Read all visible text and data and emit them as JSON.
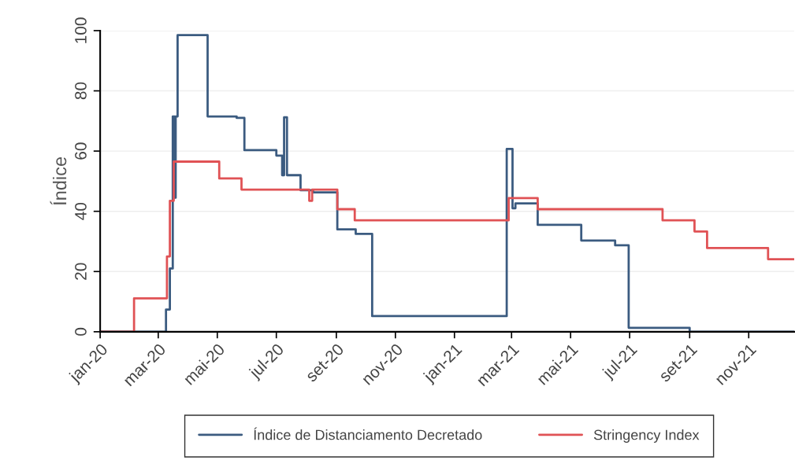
{
  "chart_data": {
    "type": "step",
    "ylabel": "Índice",
    "xlim": [
      "2020-01-01",
      "2021-12-18"
    ],
    "ylim": [
      0,
      100
    ],
    "yticks": [
      0,
      20,
      40,
      60,
      80,
      100
    ],
    "xticks": [
      {
        "value": "2020-01-01",
        "label": "jan-20"
      },
      {
        "value": "2020-03-01",
        "label": "mar-20"
      },
      {
        "value": "2020-05-01",
        "label": "mai-20"
      },
      {
        "value": "2020-07-01",
        "label": "jul-20"
      },
      {
        "value": "2020-09-01",
        "label": "set-20"
      },
      {
        "value": "2020-11-01",
        "label": "nov-20"
      },
      {
        "value": "2021-01-01",
        "label": "jan-21"
      },
      {
        "value": "2021-03-01",
        "label": "mar-21"
      },
      {
        "value": "2021-05-01",
        "label": "mai-21"
      },
      {
        "value": "2021-07-01",
        "label": "jul-21"
      },
      {
        "value": "2021-09-01",
        "label": "set-21"
      },
      {
        "value": "2021-11-01",
        "label": "nov-21"
      }
    ],
    "grid": "y",
    "legend": "bottom",
    "series": [
      {
        "name": "Índice de Distanciamento Decretado",
        "color": "#3b5b80",
        "x": [
          "2020-01-01",
          "2020-03-09",
          "2020-03-13",
          "2020-03-16",
          "2020-03-18",
          "2020-03-19",
          "2020-03-21",
          "2020-04-21",
          "2020-05-21",
          "2020-05-29",
          "2020-07-01",
          "2020-07-07",
          "2020-07-09",
          "2020-07-12",
          "2020-07-26",
          "2020-08-08",
          "2020-09-02",
          "2020-09-21",
          "2020-10-08",
          "2021-02-24",
          "2021-03-02",
          "2021-03-05",
          "2021-03-28",
          "2021-05-12",
          "2021-06-16",
          "2021-06-30",
          "2021-09-01",
          "2021-12-18"
        ],
        "values": [
          0,
          7.4,
          21,
          71.5,
          44.5,
          71.5,
          98.5,
          71.5,
          71,
          60.3,
          58.5,
          52,
          71.2,
          52,
          47,
          46.3,
          34,
          32.5,
          5.2,
          60.7,
          41,
          42.6,
          35.5,
          30.3,
          28.7,
          1.3,
          0,
          0
        ]
      },
      {
        "name": "Stringency Index",
        "color": "#e05255",
        "x": [
          "2020-01-01",
          "2020-02-05",
          "2020-03-10",
          "2020-03-13",
          "2020-03-17",
          "2020-05-03",
          "2020-05-26",
          "2020-08-04",
          "2020-08-07",
          "2020-09-02",
          "2020-09-20",
          "2021-02-26",
          "2021-03-28",
          "2021-08-04",
          "2021-09-06",
          "2021-09-19",
          "2021-11-21",
          "2021-12-18"
        ],
        "values": [
          0,
          11.1,
          25,
          43.5,
          56.5,
          50.9,
          47.2,
          43.5,
          47.2,
          40.7,
          37,
          44.4,
          40.7,
          37,
          33.3,
          27.8,
          24.1,
          24.1
        ]
      }
    ]
  }
}
